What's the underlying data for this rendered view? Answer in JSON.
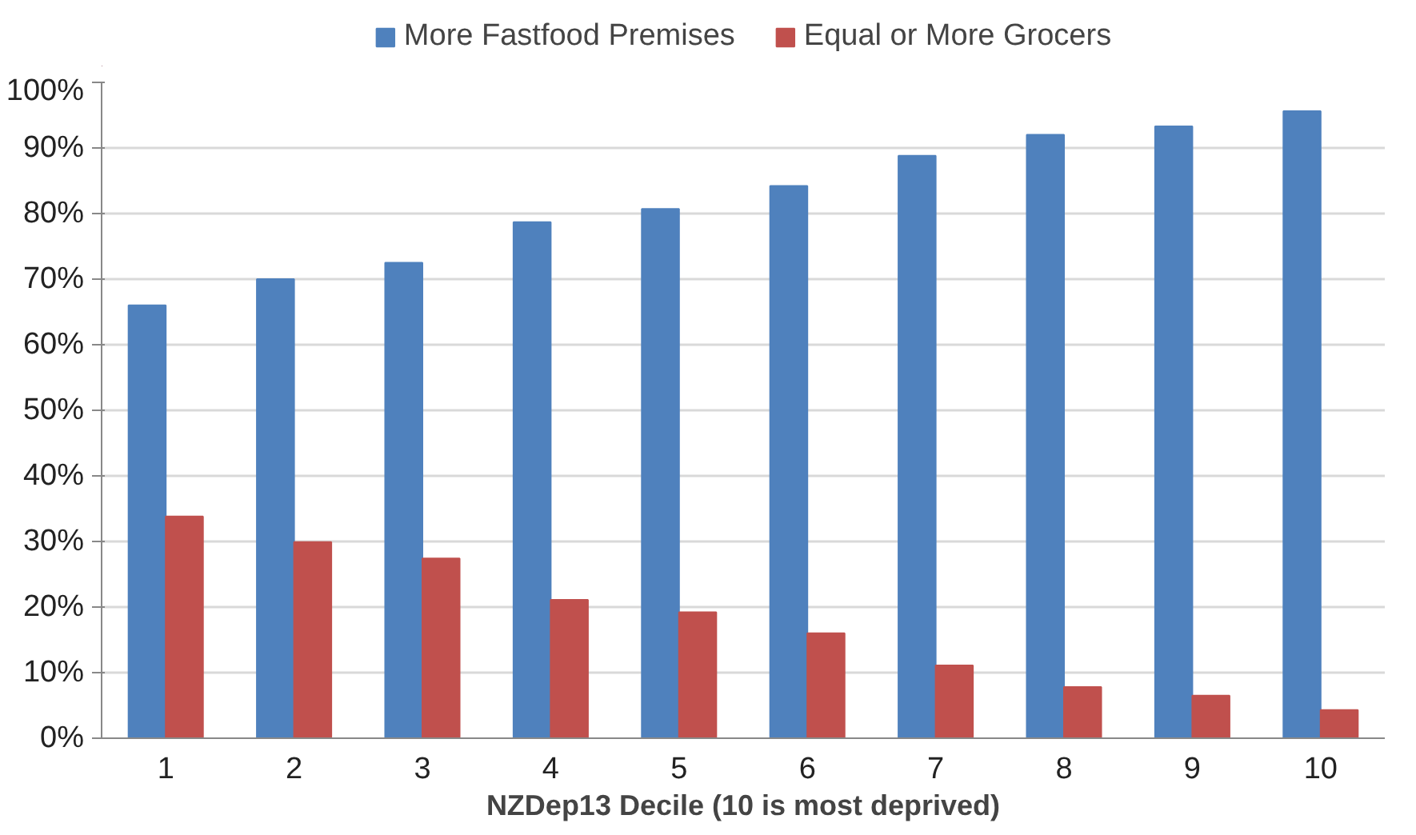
{
  "chart_data": {
    "type": "bar",
    "xlabel": "NZDep13 Decile (10 is most deprived)",
    "categories": [
      "1",
      "2",
      "3",
      "4",
      "5",
      "6",
      "7",
      "8",
      "9",
      "10"
    ],
    "series": [
      {
        "name": "More Fastfood Premises",
        "color": "#4f81bd",
        "values": [
          66.0,
          70.0,
          72.5,
          78.7,
          80.7,
          84.2,
          88.8,
          92.0,
          93.3,
          95.6
        ]
      },
      {
        "name": "Equal or More Grocers",
        "color": "#c0504d",
        "values": [
          33.8,
          29.9,
          27.4,
          21.1,
          19.2,
          16.0,
          11.1,
          7.8,
          6.5,
          4.3
        ]
      }
    ],
    "ylim": [
      0,
      100
    ],
    "yticks": [
      {
        "value": 0,
        "label": "0%"
      },
      {
        "value": 10,
        "label": "10%"
      },
      {
        "value": 20,
        "label": "20%"
      },
      {
        "value": 30,
        "label": "30%"
      },
      {
        "value": 40,
        "label": "40%"
      },
      {
        "value": 50,
        "label": "50%"
      },
      {
        "value": 60,
        "label": "60%"
      },
      {
        "value": 70,
        "label": "70%"
      },
      {
        "value": 80,
        "label": "80%"
      },
      {
        "value": 90,
        "label": "90%"
      },
      {
        "value": 100,
        "label": "100%"
      }
    ],
    "grid": "y",
    "legend": "top"
  }
}
